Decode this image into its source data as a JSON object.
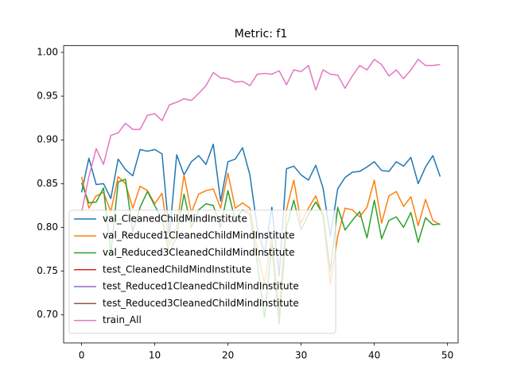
{
  "chart_data": {
    "type": "line",
    "title": "Metric: f1",
    "x": [
      0,
      1,
      2,
      3,
      4,
      5,
      6,
      7,
      8,
      9,
      10,
      11,
      12,
      13,
      14,
      15,
      16,
      17,
      18,
      19,
      20,
      21,
      22,
      23,
      24,
      25,
      26,
      27,
      28,
      29,
      30,
      31,
      32,
      33,
      34,
      35,
      36,
      37,
      38,
      39,
      40,
      41,
      42,
      43,
      44,
      45,
      46,
      47,
      48,
      49
    ],
    "xlim": [
      -2.45,
      51.45
    ],
    "xticks": [
      0,
      10,
      20,
      30,
      40,
      50
    ],
    "ylim": [
      0.668,
      1.0076
    ],
    "yticks": [
      {
        "value": 0.7,
        "label": "0.70"
      },
      {
        "value": 0.75,
        "label": "0.75"
      },
      {
        "value": 0.8,
        "label": "0.80"
      },
      {
        "value": 0.85,
        "label": "0.85"
      },
      {
        "value": 0.9,
        "label": "0.90"
      },
      {
        "value": 0.95,
        "label": "0.95"
      },
      {
        "value": 1.0,
        "label": "1.00"
      }
    ],
    "legend": "lower left",
    "series": [
      {
        "name": "val_CleanedChildMindInstitute",
        "color": "#1f77b4",
        "values": [
          0.84,
          0.879,
          0.849,
          0.85,
          0.833,
          0.878,
          0.866,
          0.859,
          0.889,
          0.887,
          0.889,
          0.884,
          0.79,
          0.883,
          0.86,
          0.875,
          0.882,
          0.872,
          0.895,
          0.83,
          0.875,
          0.878,
          0.891,
          0.86,
          0.8,
          0.77,
          0.823,
          0.745,
          0.867,
          0.87,
          0.86,
          0.854,
          0.871,
          0.845,
          0.79,
          0.844,
          0.857,
          0.863,
          0.864,
          0.869,
          0.875,
          0.865,
          0.864,
          0.875,
          0.87,
          0.88,
          0.85,
          0.869,
          0.882,
          0.858
        ]
      },
      {
        "name": "val_Reduced1CleanedChildMindInstitute",
        "color": "#ff7f0e",
        "values": [
          0.858,
          0.822,
          0.836,
          0.84,
          0.818,
          0.858,
          0.85,
          0.822,
          0.847,
          0.842,
          0.827,
          0.839,
          0.78,
          0.8,
          0.86,
          0.817,
          0.838,
          0.842,
          0.844,
          0.822,
          0.862,
          0.822,
          0.828,
          0.822,
          0.775,
          0.735,
          0.79,
          0.7,
          0.82,
          0.854,
          0.805,
          0.822,
          0.836,
          0.812,
          0.735,
          0.79,
          0.822,
          0.82,
          0.812,
          0.823,
          0.854,
          0.805,
          0.836,
          0.841,
          0.824,
          0.835,
          0.802,
          0.832,
          0.808,
          0.803
        ]
      },
      {
        "name": "val_Reduced3CleanedChildMindInstitute",
        "color": "#2ca02c",
        "values": [
          0.851,
          0.828,
          0.829,
          0.845,
          0.77,
          0.852,
          0.855,
          0.795,
          0.823,
          0.841,
          0.825,
          0.809,
          0.77,
          0.79,
          0.838,
          0.8,
          0.82,
          0.827,
          0.825,
          0.8,
          0.842,
          0.808,
          0.82,
          0.815,
          0.76,
          0.697,
          0.78,
          0.69,
          0.8,
          0.831,
          0.797,
          0.815,
          0.829,
          0.815,
          0.75,
          0.823,
          0.797,
          0.808,
          0.818,
          0.788,
          0.831,
          0.787,
          0.808,
          0.812,
          0.8,
          0.817,
          0.783,
          0.811,
          0.803,
          0.804
        ]
      },
      {
        "name": "test_CleanedChildMindInstitute",
        "color": "#d62728",
        "values": [
          null,
          null,
          null,
          null,
          null,
          null,
          null,
          null,
          null,
          null,
          null,
          null,
          null,
          null,
          null,
          null,
          null,
          null,
          null,
          null,
          null,
          null,
          null,
          null,
          null,
          null,
          null,
          null,
          null,
          null,
          null,
          null,
          null,
          null,
          null,
          null,
          null,
          null,
          null,
          null,
          null,
          null,
          null,
          null,
          null,
          null,
          null,
          null,
          null,
          null
        ]
      },
      {
        "name": "test_Reduced1CleanedChildMindInstitute",
        "color": "#9467bd",
        "values": [
          null,
          null,
          null,
          null,
          null,
          null,
          null,
          null,
          null,
          null,
          null,
          null,
          null,
          null,
          null,
          null,
          null,
          null,
          null,
          null,
          null,
          null,
          null,
          null,
          null,
          null,
          null,
          null,
          null,
          null,
          null,
          null,
          null,
          null,
          null,
          null,
          null,
          null,
          null,
          null,
          null,
          null,
          null,
          null,
          null,
          null,
          null,
          null,
          null,
          null
        ]
      },
      {
        "name": "test_Reduced3CleanedChildMindInstitute",
        "color": "#8c564b",
        "values": [
          null,
          null,
          null,
          null,
          null,
          null,
          null,
          null,
          null,
          null,
          null,
          null,
          null,
          null,
          null,
          null,
          null,
          null,
          null,
          null,
          null,
          null,
          null,
          null,
          null,
          null,
          null,
          null,
          null,
          null,
          null,
          null,
          null,
          null,
          null,
          null,
          null,
          null,
          null,
          null,
          null,
          null,
          null,
          null,
          null,
          null,
          null,
          null,
          null,
          null
        ]
      },
      {
        "name": "train_All",
        "color": "#e377c2",
        "values": [
          0.817,
          0.858,
          0.89,
          0.872,
          0.905,
          0.908,
          0.919,
          0.912,
          0.912,
          0.928,
          0.93,
          0.922,
          0.94,
          0.943,
          0.947,
          0.945,
          0.953,
          0.962,
          0.977,
          0.971,
          0.97,
          0.966,
          0.967,
          0.962,
          0.975,
          0.976,
          0.975,
          0.979,
          0.963,
          0.98,
          0.978,
          0.985,
          0.957,
          0.98,
          0.975,
          0.974,
          0.959,
          0.973,
          0.985,
          0.98,
          0.992,
          0.986,
          0.973,
          0.98,
          0.97,
          0.98,
          0.992,
          0.985,
          0.985,
          0.986
        ]
      }
    ]
  }
}
